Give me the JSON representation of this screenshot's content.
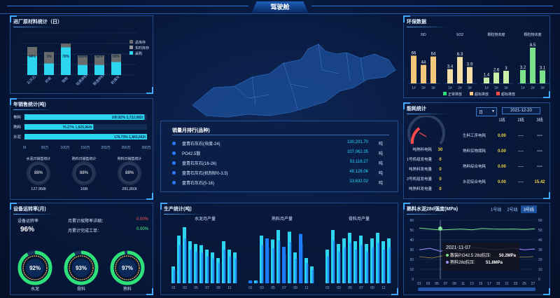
{
  "header": {
    "title": "驾驶舱"
  },
  "incoming": {
    "title": "进厂原材料统计（日）",
    "legend": [
      "总库存",
      "实时库存",
      "采购"
    ],
    "categories": [
      "石灰石",
      "砂岩",
      "铁粉",
      "硅质原料",
      "钢渣原料",
      "粉煤灰"
    ],
    "pct_labels": [
      "94%",
      "1%",
      "70%",
      "100%",
      "52%",
      "91%"
    ]
  },
  "sales": {
    "title": "年销售统计(吨)",
    "rows": [
      {
        "label": "骨料",
        "value": "100.82% 2,722,082t",
        "pct": 100.82
      },
      {
        "label": "熟料",
        "value": "70.27% 1,925,964t",
        "pct": 70.27
      },
      {
        "label": "水泥",
        "value": "176.73% 1,865,662t",
        "pct": 176.73
      }
    ],
    "axis": [
      "0t",
      "50万",
      "100万",
      "150万",
      "200万",
      "250万",
      "300万"
    ],
    "circles": [
      {
        "title": "水泥日销售统计",
        "value": "88%",
        "amount": "127,958t"
      },
      {
        "title": "熟料日销售统计",
        "value": "88%",
        "amount": "168t"
      },
      {
        "title": "骨料日销售统计",
        "value": "88%",
        "amount": "281,893t"
      }
    ]
  },
  "equip": {
    "title": "设备运转率(月)",
    "rate_label": "设备运转率",
    "rate": "96%",
    "items": [
      {
        "label": "月累计故障率详细：",
        "value": "0.00%"
      },
      {
        "label": "月累计完成工单：",
        "value": "0.00%"
      }
    ],
    "gauges": [
      {
        "label": "水泥",
        "value": "92%"
      },
      {
        "label": "骨料",
        "value": "93%"
      },
      {
        "label": "熟料",
        "value": "97%"
      }
    ]
  },
  "rank": {
    "title": "销量月排行(品种)",
    "rows": [
      {
        "name": "盘青石灰石(块度-24)",
        "value": "130,201.70",
        "unit": "吨"
      },
      {
        "name": "PO42.5散",
        "value": "107,062.35",
        "unit": "吨"
      },
      {
        "name": "盘青石灰石(16-26)",
        "value": "53,118.27",
        "unit": "吨"
      },
      {
        "name": "盘青石灰石(机制砂0-3.5)",
        "value": "48,128.06",
        "unit": "吨"
      },
      {
        "name": "盘青石灰石(5-16)",
        "value": "33,632.02",
        "unit": "吨"
      }
    ]
  },
  "production": {
    "title": "生产统计(吨)",
    "charts": [
      {
        "title": "水泥月产量",
        "values": [
          0.3,
          0.85,
          1.0,
          0.75,
          0.7,
          0.68,
          0.6,
          0.55,
          0.45,
          0.75,
          0.6,
          0.55
        ]
      },
      {
        "title": "熟料月产量",
        "values": [
          0.05,
          0.05,
          0.85,
          0.8,
          0.78,
          0.95,
          0.65,
          0.92,
          0.55,
          0.88,
          0.45,
          0.3
        ]
      },
      {
        "title": "骨料月产量",
        "values": [
          0.6,
          0.95,
          0.7,
          0.8,
          0.9,
          0.75,
          0.85,
          0.7,
          0.8,
          0.9,
          0.75,
          0.8
        ]
      }
    ],
    "xlabels": [
      "01",
      "03",
      "05",
      "07",
      "09",
      "11"
    ]
  },
  "env": {
    "title": "环保数据",
    "groups": [
      {
        "name": "NO",
        "vals": [
          "66",
          "44",
          "64"
        ],
        "h": [
          0.66,
          0.44,
          0.64
        ],
        "color": "#f5c77a"
      },
      {
        "name": "SO2",
        "vals": [
          "3.4",
          "6.3",
          "3.9"
        ],
        "h": [
          0.34,
          0.63,
          0.39
        ],
        "color": "#f5dfa6"
      },
      {
        "name": "颗粒物浓度",
        "vals": [
          "1.4",
          "2.6",
          "3"
        ],
        "h": [
          0.14,
          0.26,
          0.3
        ],
        "color": "#c9f0a6"
      },
      {
        "name": "颗粒物浓度",
        "vals": [
          "3.2",
          "8.5",
          "3.1"
        ],
        "h": [
          0.32,
          0.85,
          0.31
        ],
        "color": "#7de08a"
      }
    ],
    "legend": [
      "正常排放",
      "超标排放",
      "超标排放"
    ]
  },
  "energy": {
    "title": "能耗统计",
    "select": "日",
    "date": "2021-12-20",
    "cols": [
      "1线",
      "2线",
      "3线"
    ],
    "gauge_label": "吨熟料电耗",
    "rows_left": [
      {
        "label": "吨熟料电耗",
        "value": "30"
      },
      {
        "label": "1号机组发电量",
        "value": "0"
      },
      {
        "label": "吨熟料发电量",
        "value": "0"
      },
      {
        "label": "2号机组发电量",
        "value": "0"
      },
      {
        "label": "吨熟料发电量",
        "value": "0"
      }
    ],
    "rows_right": [
      {
        "label": "生料工序电耗",
        "v1": "0.00",
        "v2": "----",
        "v3": "----"
      },
      {
        "label": "熟料实物煤耗",
        "v1": "0.00",
        "v2": "----",
        "v3": "----"
      },
      {
        "label": "熟料综合电耗",
        "v1": "0.00",
        "v2": "----",
        "v3": "----"
      },
      {
        "label": "水泥综合电耗",
        "v1": "0.00",
        "v2": "----",
        "v3": "15.42"
      }
    ]
  },
  "strength": {
    "title": "熟料水泥28d强度(MPa)",
    "tabs": [
      "1号线",
      "2号线",
      "3号线"
    ],
    "yleft": [
      "60",
      "50",
      "40",
      "30",
      "20",
      "10",
      "0"
    ],
    "yright": [
      "60",
      "50",
      "40",
      "30",
      "20",
      "10",
      "0"
    ],
    "xlabels": [
      "01",
      "03",
      "05",
      "07",
      "09",
      "11",
      "13",
      "15",
      "17",
      "19",
      "21",
      "23",
      "25",
      "27"
    ],
    "tooltip": {
      "date": "2021-11-07",
      "l1": "散装P.O42.5 28d抗压:",
      "v1": "50.2MPa",
      "l2": "熟料28d抗压:",
      "v2": "51.8MPa"
    }
  }
}
